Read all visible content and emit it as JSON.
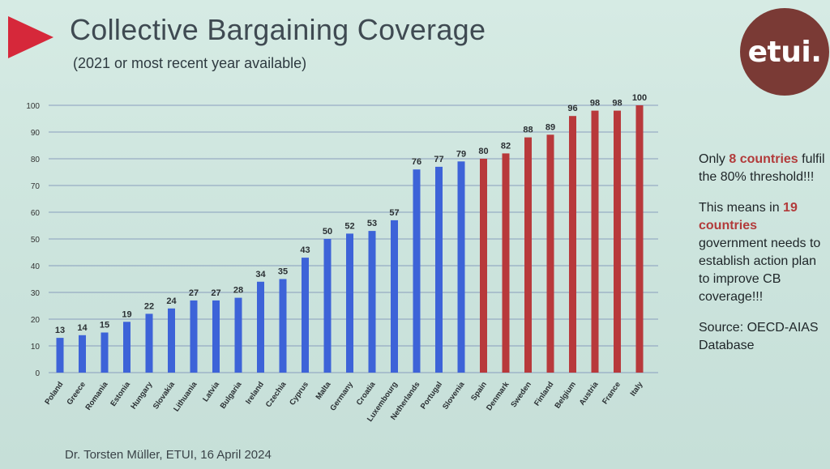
{
  "slide": {
    "title": "Collective Bargaining Coverage",
    "subtitle": "(2021 or most recent year available)",
    "logo_text": "etui.",
    "footer": "Dr. Torsten Müller, ETUI, 16 April 2024",
    "notes": {
      "p1_before": "Only ",
      "p1_highlight": "8 countries",
      "p1_after": " fulfil the 80% threshold!!!",
      "p2_before": "This means in ",
      "p2_highlight_1": "19",
      "p2_highlight_2": "countries",
      "p2_after": " government needs to establish action plan to improve CB coverage!!!",
      "p3": "Source: OECD-AIAS Database"
    }
  },
  "colors": {
    "below_threshold": "#3d63d8",
    "above_threshold": "#b8393b",
    "accent_triangle": "#d6283a",
    "logo_bg": "#7a3a35",
    "gridline": "#7e92b8"
  },
  "chart_data": {
    "type": "bar",
    "title": "Collective Bargaining Coverage",
    "subtitle": "(2021 or most recent year available)",
    "xlabel": "",
    "ylabel": "",
    "ylim": [
      0,
      100
    ],
    "yticks": [
      0,
      10,
      20,
      30,
      40,
      50,
      60,
      70,
      80,
      90,
      100
    ],
    "grid": true,
    "categories": [
      "Poland",
      "Greece",
      "Romania",
      "Estonia",
      "Hungary",
      "Slovakia",
      "Lithuania",
      "Latvia",
      "Bulgaria",
      "Ireland",
      "Czechia",
      "Cyprus",
      "Malta",
      "Germany",
      "Croatia",
      "Luxembourg",
      "Netherlands",
      "Portugal",
      "Slovenia",
      "Spain",
      "Denmark",
      "Sweden",
      "Finland",
      "Belgium",
      "Austria",
      "France",
      "Italy"
    ],
    "values": [
      13,
      14,
      15,
      19,
      22,
      24,
      27,
      27,
      28,
      34,
      35,
      43,
      50,
      52,
      53,
      57,
      76,
      77,
      79,
      80,
      82,
      88,
      89,
      96,
      98,
      98,
      100
    ],
    "threshold": 80
  }
}
